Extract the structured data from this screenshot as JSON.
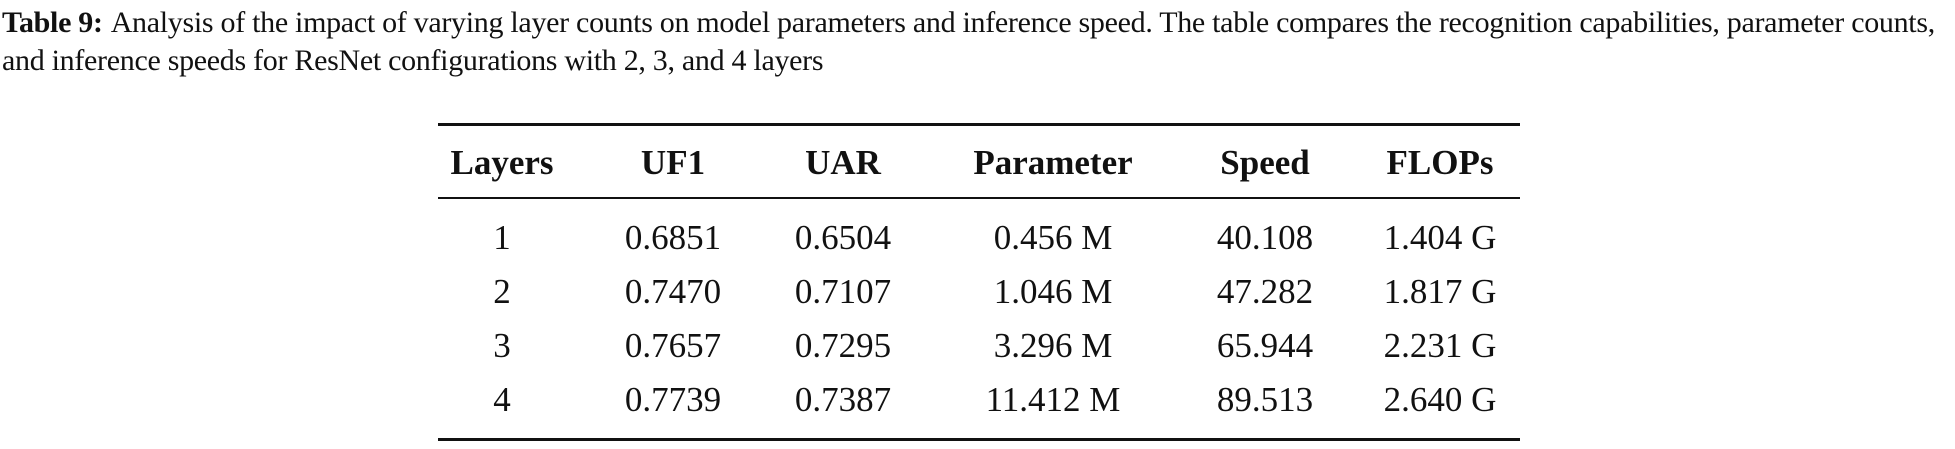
{
  "caption": {
    "label": "Table 9:",
    "text": "Analysis of the impact of varying layer counts on model parameters and inference speed. The table compares the recognition capabilities, parameter counts, and inference speeds for ResNet configurations with 2, 3, and 4 layers"
  },
  "table": {
    "header": [
      "Layers",
      "UF1",
      "UAR",
      "Parameter",
      "Speed",
      "FLOPs"
    ],
    "rows": [
      [
        "1",
        "0.6851",
        "0.6504",
        "0.456 M",
        "40.108",
        "1.404 G"
      ],
      [
        "2",
        "0.7470",
        "0.7107",
        "1.046 M",
        "47.282",
        "1.817 G"
      ],
      [
        "3",
        "0.7657",
        "0.7295",
        "3.296 M",
        "65.944",
        "2.231 G"
      ],
      [
        "4",
        "0.7739",
        "0.7387",
        "11.412 M",
        "89.513",
        "2.640 G"
      ]
    ]
  }
}
